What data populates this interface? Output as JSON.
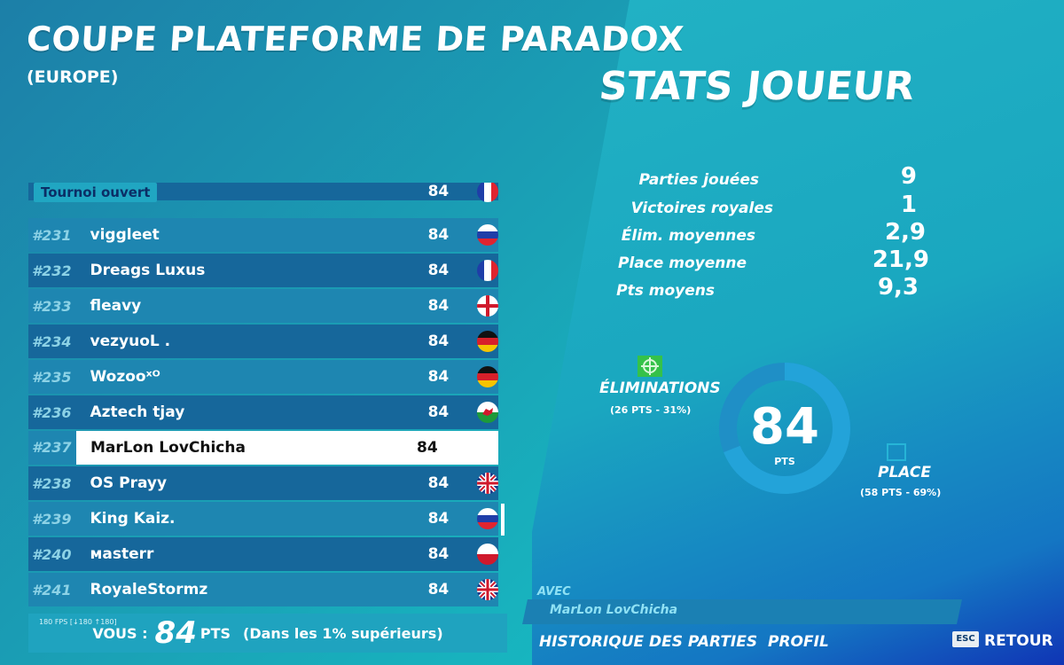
{
  "header": {
    "title": "COUPE PLATEFORME DE PARADOX",
    "subtitle": "(EUROPE)",
    "stats_title": "STATS JOUEUR"
  },
  "leaderboard": {
    "tag": "Tournoi ouvert",
    "partial_top_points": "84",
    "rows": [
      {
        "rank": "#231",
        "name": "viggleet",
        "points": "84",
        "flag": "russia"
      },
      {
        "rank": "#232",
        "name": "Dreags Luxus",
        "points": "84",
        "flag": "france"
      },
      {
        "rank": "#233",
        "name": "fleavy",
        "points": "84",
        "flag": "england"
      },
      {
        "rank": "#234",
        "name": "vezyuoL .",
        "points": "84",
        "flag": "germany"
      },
      {
        "rank": "#235",
        "name": "Wozooˣᴼ",
        "points": "84",
        "flag": "germany"
      },
      {
        "rank": "#236",
        "name": "Aztech tjay",
        "points": "84",
        "flag": "wales"
      },
      {
        "rank": "#237",
        "name": "MarLon LovChicha",
        "points": "84",
        "flag": "none"
      },
      {
        "rank": "#238",
        "name": "OS Prayy",
        "points": "84",
        "flag": "uk"
      },
      {
        "rank": "#239",
        "name": "King Kaiz.",
        "points": "84",
        "flag": "russia"
      },
      {
        "rank": "#240",
        "name": "мasterr",
        "points": "84",
        "flag": "poland"
      },
      {
        "rank": "#241",
        "name": "RoyaleStormz",
        "points": "84",
        "flag": "uk"
      }
    ]
  },
  "footer": {
    "fps": "180 FPS [↓180 ↑180]",
    "vous_label": "VOUS :",
    "vous_points": "84",
    "pts_label": "PTS",
    "rank_note": "(Dans les 1% supérieurs)"
  },
  "stats": [
    {
      "label": "Parties jouées",
      "value": "9"
    },
    {
      "label": "Victoires royales",
      "value": "1"
    },
    {
      "label": "Élim. moyennes",
      "value": "2,9"
    },
    {
      "label": "Place moyenne",
      "value": "21,9"
    },
    {
      "label": "Pts moyens",
      "value": "9,3"
    }
  ],
  "breakdown": {
    "total_points": "84",
    "pts_label": "PTS",
    "elim_label": "ÉLIMINATIONS",
    "elim_detail": "(26 PTS - 31%)",
    "elim_share": 0.31,
    "place_label": "PLACE",
    "place_detail": "(58 PTS - 69%)",
    "place_share": 0.69
  },
  "party": {
    "avec_label": "AVEC",
    "member": "MarLon LovChicha"
  },
  "nav": {
    "history": "HISTORIQUE DES PARTIES",
    "profile": "PROFIL",
    "esc_key": "ESC",
    "back": "RETOUR"
  },
  "colors": {
    "row_dark": "#16679b",
    "row_light": "#1e86b1",
    "elim_green": "#39c43c",
    "place_blue": "#23a3d9"
  }
}
